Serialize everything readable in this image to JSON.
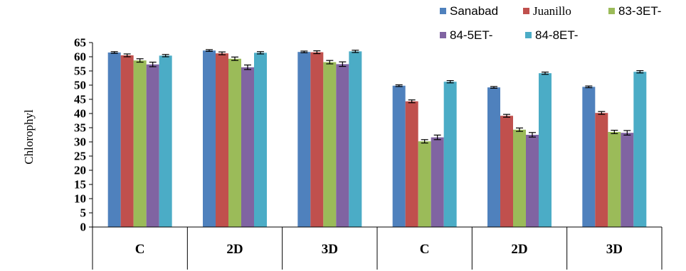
{
  "chart_data": {
    "type": "bar",
    "categories": [
      "C",
      "2D",
      "3D",
      "C",
      "2D",
      "3D"
    ],
    "ylabel": "Chlorophyl",
    "ylim": [
      0,
      65
    ],
    "yticks": [
      0,
      5,
      10,
      15,
      20,
      25,
      30,
      35,
      40,
      45,
      50,
      55,
      60,
      65
    ],
    "grid": false,
    "legend_position": "top-right",
    "series": [
      {
        "name": "Sanabad",
        "color": "#4f81bd",
        "values": [
          61.5,
          62.2,
          61.7,
          49.8,
          49.2,
          49.4
        ],
        "errors": [
          0.3,
          0.3,
          0.3,
          0.3,
          0.3,
          0.3
        ]
      },
      {
        "name": "Juanillo",
        "color": "#c0504d",
        "values": [
          60.5,
          61.2,
          61.6,
          44.3,
          39.2,
          40.2
        ],
        "errors": [
          0.5,
          0.5,
          0.5,
          0.5,
          0.5,
          0.5
        ]
      },
      {
        "name": "83-3ET-",
        "color": "#9bbb59",
        "values": [
          58.7,
          59.3,
          58.1,
          30.2,
          34.3,
          33.5
        ],
        "errors": [
          0.6,
          0.6,
          0.6,
          0.6,
          0.6,
          0.6
        ]
      },
      {
        "name": "84-5ET-",
        "color": "#8064a2",
        "values": [
          57.3,
          56.3,
          57.4,
          31.6,
          32.5,
          33.2
        ],
        "errors": [
          0.8,
          0.8,
          0.8,
          0.8,
          0.8,
          0.8
        ]
      },
      {
        "name": "84-8ET-",
        "color": "#4bacc6",
        "values": [
          60.4,
          61.4,
          61.9,
          51.2,
          54.2,
          54.7
        ],
        "errors": [
          0.4,
          0.4,
          0.4,
          0.4,
          0.4,
          0.4
        ]
      }
    ]
  }
}
